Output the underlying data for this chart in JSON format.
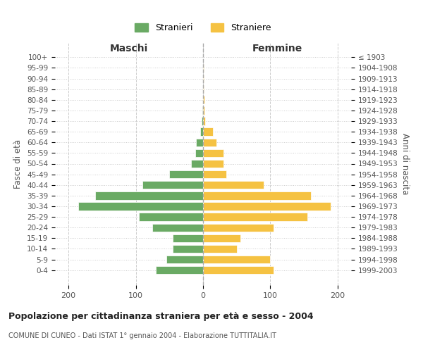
{
  "age_groups": [
    "100+",
    "95-99",
    "90-94",
    "85-89",
    "80-84",
    "75-79",
    "70-74",
    "65-69",
    "60-64",
    "55-59",
    "50-54",
    "45-49",
    "40-44",
    "35-39",
    "30-34",
    "25-29",
    "20-24",
    "15-19",
    "10-14",
    "5-9",
    "0-4"
  ],
  "birth_years": [
    "≤ 1903",
    "1904-1908",
    "1909-1913",
    "1914-1918",
    "1919-1923",
    "1924-1928",
    "1929-1933",
    "1934-1938",
    "1939-1943",
    "1944-1948",
    "1949-1953",
    "1954-1958",
    "1959-1963",
    "1964-1968",
    "1969-1973",
    "1974-1978",
    "1979-1983",
    "1984-1988",
    "1989-1993",
    "1994-1998",
    "1999-2003"
  ],
  "maschi": [
    0,
    0,
    0,
    0,
    0,
    1,
    2,
    4,
    10,
    12,
    18,
    50,
    90,
    160,
    185,
    95,
    75,
    45,
    45,
    55,
    70
  ],
  "femmine": [
    0,
    1,
    1,
    1,
    2,
    2,
    3,
    15,
    20,
    30,
    30,
    35,
    90,
    160,
    190,
    155,
    105,
    55,
    50,
    100,
    105
  ],
  "color_maschi": "#6aaa64",
  "color_femmine": "#f5c242",
  "title": "Popolazione per cittadinanza straniera per età e sesso - 2004",
  "subtitle": "COMUNE DI CUNEO - Dati ISTAT 1° gennaio 2004 - Elaborazione TUTTITALIA.IT",
  "xlabel_left": "Maschi",
  "xlabel_right": "Femmine",
  "ylabel_left": "Fasce di età",
  "ylabel_right": "Anni di nascita",
  "xlim": 220,
  "legend_stranieri": "Stranieri",
  "legend_straniere": "Straniere",
  "background_color": "#ffffff",
  "grid_color": "#cccccc"
}
